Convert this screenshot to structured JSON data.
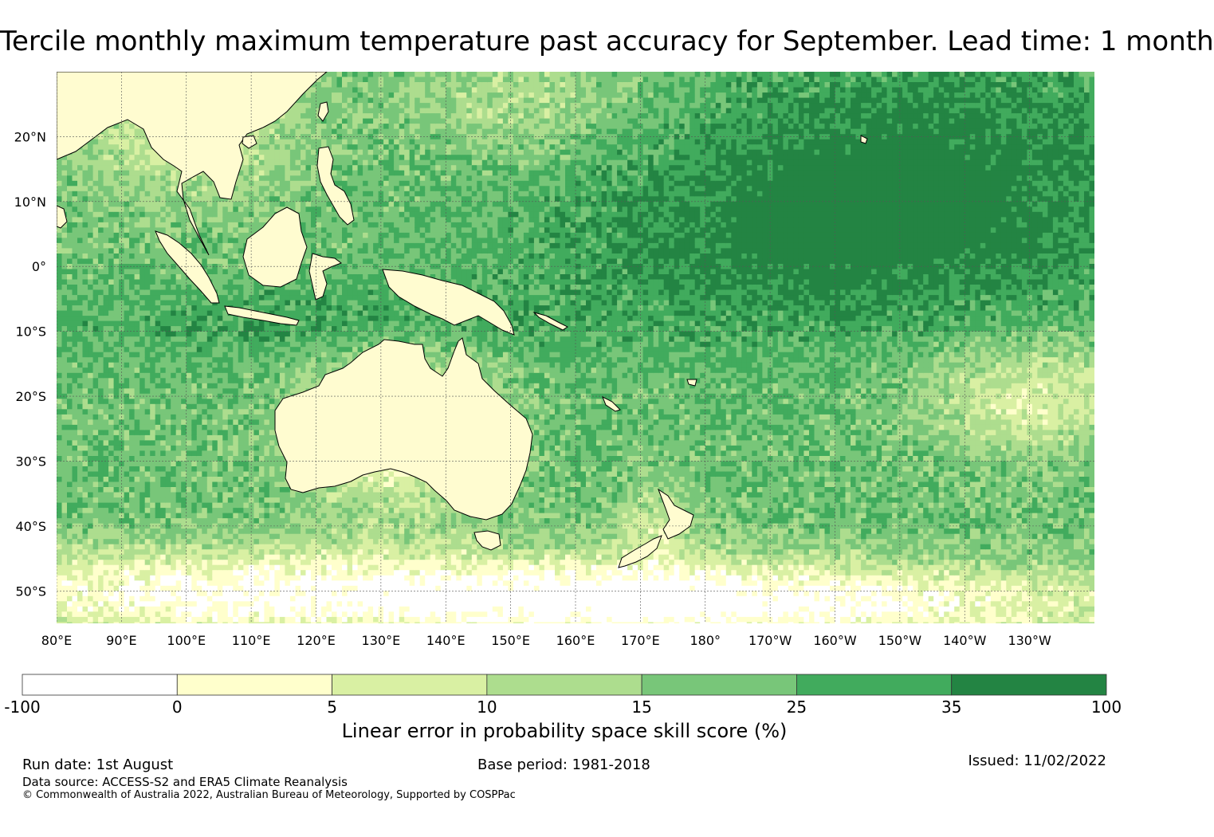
{
  "map": {
    "title": "Tercile monthly maximum temperature past accuracy for September. Lead time: 1 month",
    "lat_labels": [
      {
        "lat": 20,
        "text": "20°N"
      },
      {
        "lat": 10,
        "text": "10°N"
      },
      {
        "lat": 0,
        "text": "0°"
      },
      {
        "lat": -10,
        "text": "10°S"
      },
      {
        "lat": -20,
        "text": "20°S"
      },
      {
        "lat": -30,
        "text": "30°S"
      },
      {
        "lat": -40,
        "text": "40°S"
      },
      {
        "lat": -50,
        "text": "50°S"
      }
    ],
    "lon_labels": [
      {
        "lon": 80,
        "text": "80°E"
      },
      {
        "lon": 90,
        "text": "90°E"
      },
      {
        "lon": 100,
        "text": "100°E"
      },
      {
        "lon": 110,
        "text": "110°E"
      },
      {
        "lon": 120,
        "text": "120°E"
      },
      {
        "lon": 130,
        "text": "130°E"
      },
      {
        "lon": 140,
        "text": "140°E"
      },
      {
        "lon": 150,
        "text": "150°E"
      },
      {
        "lon": 160,
        "text": "160°E"
      },
      {
        "lon": 170,
        "text": "170°E"
      },
      {
        "lon": 180,
        "text": "180°"
      },
      {
        "lon": 190,
        "text": "170°W"
      },
      {
        "lon": 200,
        "text": "160°W"
      },
      {
        "lon": 210,
        "text": "150°W"
      },
      {
        "lon": 220,
        "text": "140°W"
      },
      {
        "lon": 230,
        "text": "130°W"
      }
    ],
    "extent": {
      "lon_min": 80,
      "lon_max": 240,
      "lat_min": -55,
      "lat_max": 30
    }
  },
  "legend": {
    "label": "Linear error in probability space skill score (%)",
    "bins": [
      {
        "from": "-100",
        "to": "0",
        "color": "#ffffff"
      },
      {
        "from": "0",
        "to": "5",
        "color": "#ffffcc"
      },
      {
        "from": "5",
        "to": "10",
        "color": "#d9f0a3"
      },
      {
        "from": "10",
        "to": "15",
        "color": "#addd8e"
      },
      {
        "from": "15",
        "to": "25",
        "color": "#78c679"
      },
      {
        "from": "25",
        "to": "35",
        "color": "#41ab5d"
      },
      {
        "from": "35",
        "to": "100",
        "color": "#238443"
      }
    ],
    "ticks": [
      "-100",
      "0",
      "5",
      "10",
      "15",
      "25",
      "35",
      "100"
    ]
  },
  "footer": {
    "run_date": "Run date: 1st August",
    "base_period": "Base period: 1981-2018",
    "issued": "Issued: 11/02/2022",
    "data_source": "Data source: ACCESS-S2 and ERA5 Climate Reanalysis",
    "copyright": "© Commonwealth of Australia 2022, Australian Bureau of Meteorology, Supported by COSPPac"
  }
}
